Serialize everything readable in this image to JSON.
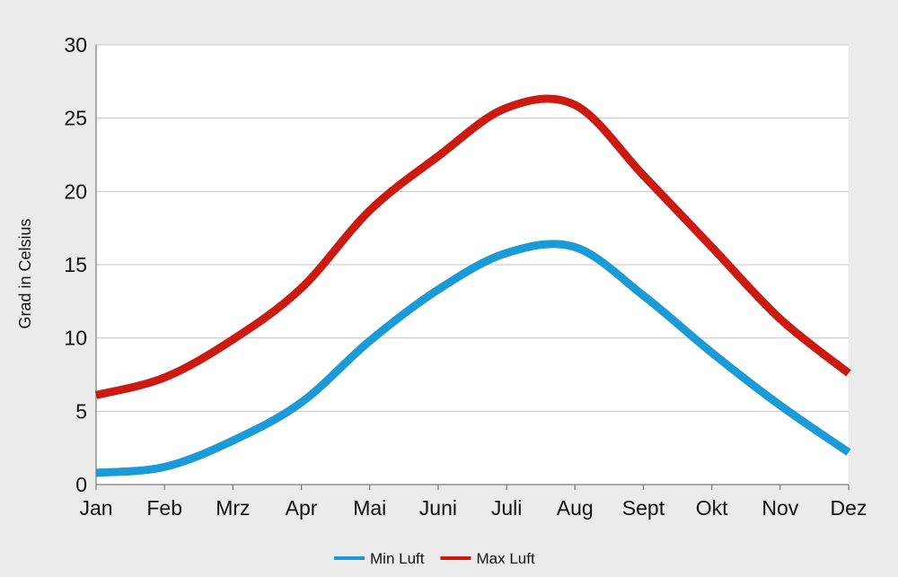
{
  "chart_data": {
    "type": "line",
    "title": "",
    "xlabel": "",
    "ylabel": "Grad in Celsius",
    "ylim": [
      0,
      30
    ],
    "y_ticks": [
      "0",
      "5",
      "10",
      "15",
      "20",
      "25",
      "30"
    ],
    "categories": [
      "Jan",
      "Feb",
      "Mrz",
      "Apr",
      "Mai",
      "Juni",
      "Juli",
      "Aug",
      "Sept",
      "Okt",
      "Nov",
      "Dez"
    ],
    "grid": true,
    "legend": "bottom",
    "smooth": true,
    "series": [
      {
        "name": "Min Luft",
        "color": "#1a9ad6",
        "values": [
          0.8,
          1.2,
          3.0,
          5.6,
          9.8,
          13.3,
          15.8,
          16.2,
          12.9,
          9.0,
          5.4,
          2.2
        ]
      },
      {
        "name": "Max Luft",
        "color": "#cc1a10",
        "values": [
          6.1,
          7.3,
          9.9,
          13.4,
          18.7,
          22.4,
          25.7,
          25.9,
          21.1,
          16.2,
          11.3,
          7.6
        ]
      }
    ]
  }
}
